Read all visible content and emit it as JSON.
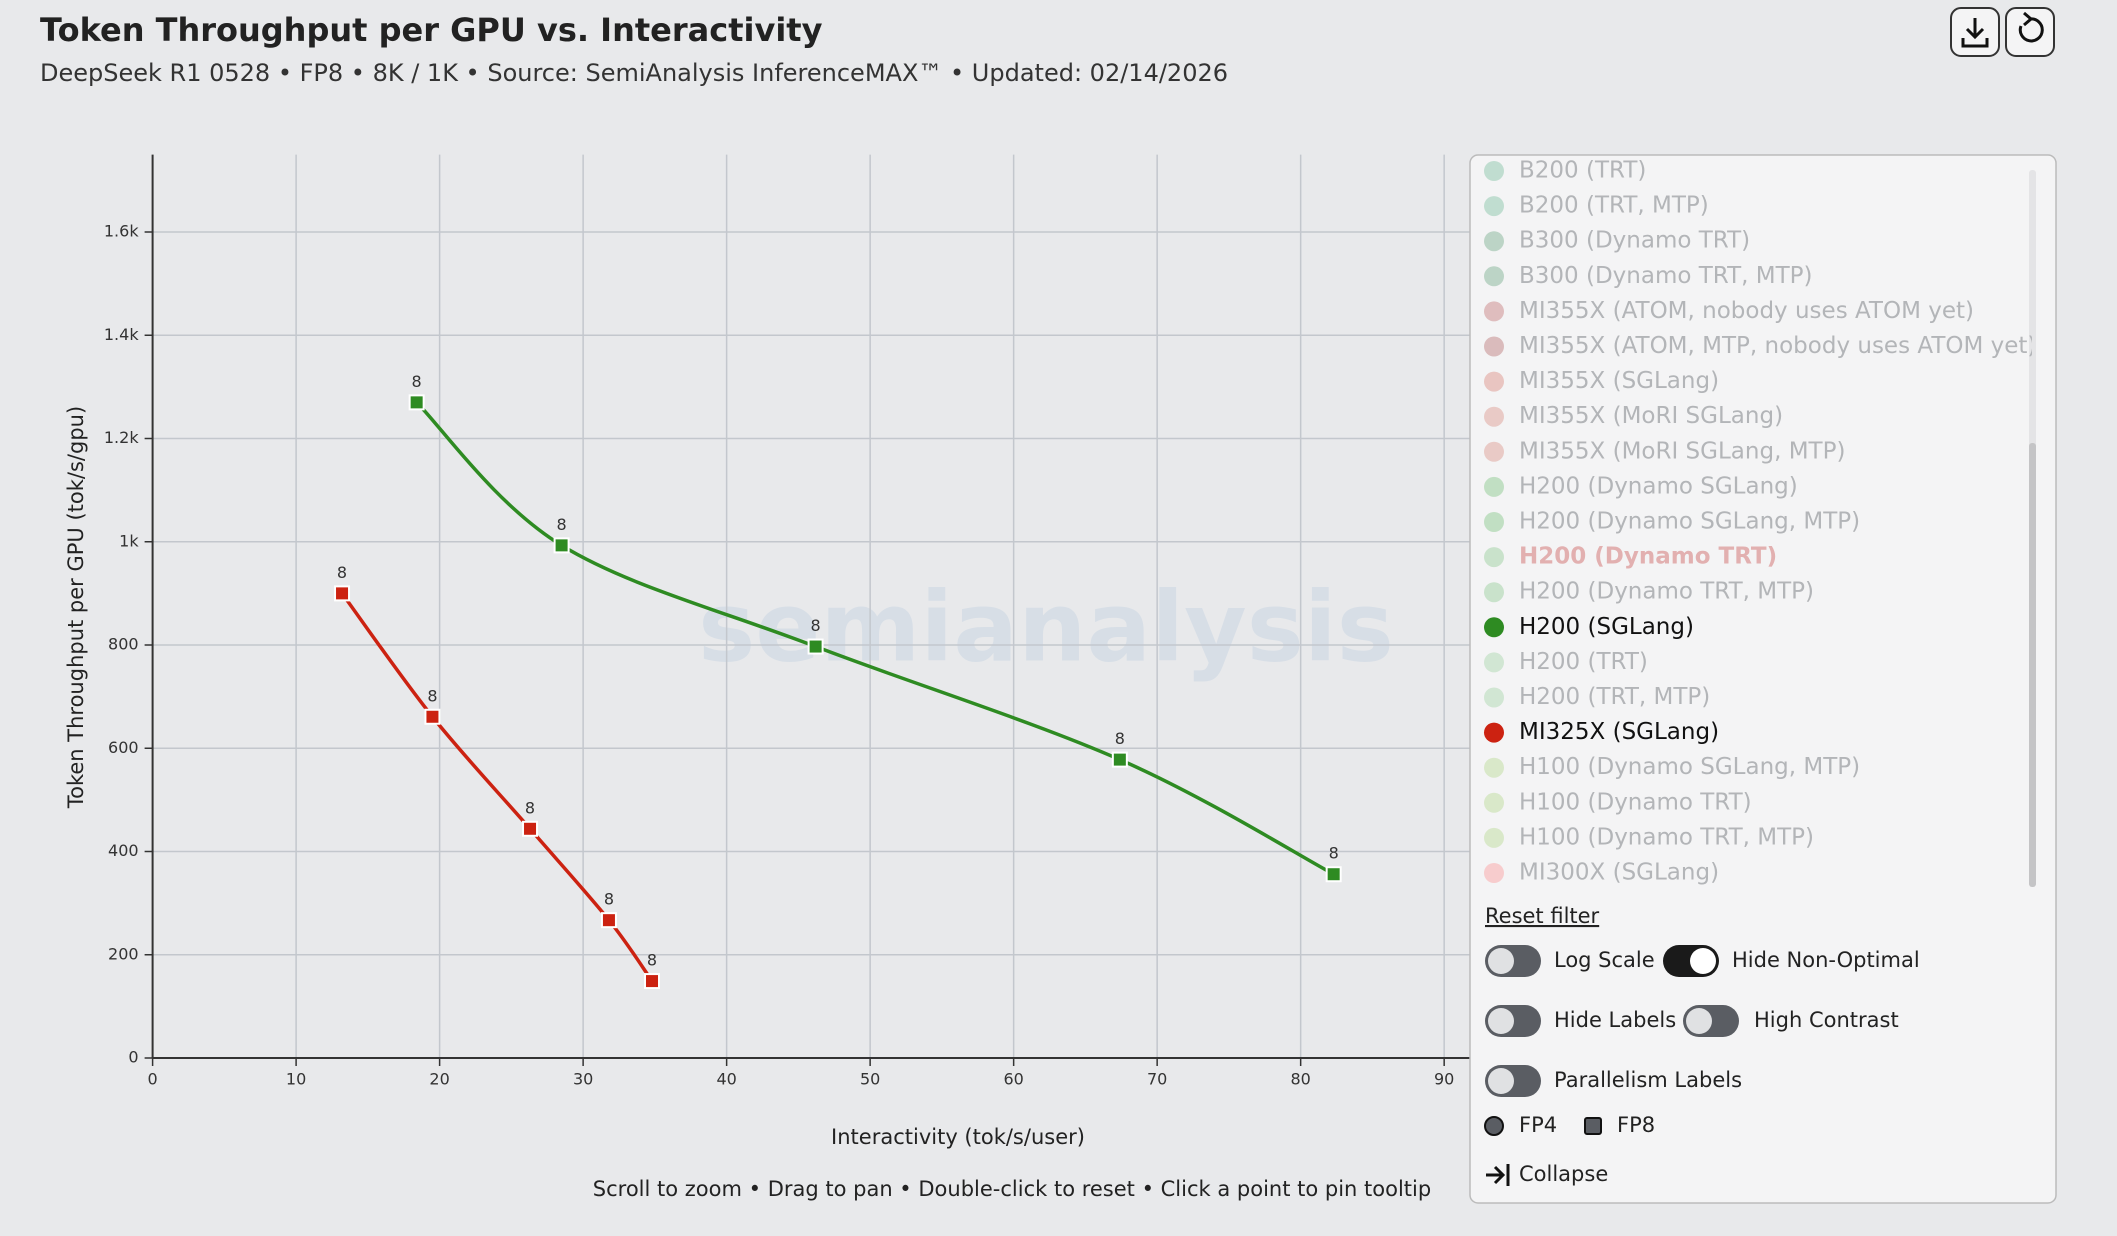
{
  "header": {
    "title": "Token Throughput per GPU vs. Interactivity",
    "subtitle": "DeepSeek R1 0528 • FP8 • 8K / 1K • Source: SemiAnalysis InferenceMAX™ • Updated: 02/14/2026"
  },
  "chart_data": {
    "type": "line",
    "x_label": "Interactivity (tok/s/user)",
    "y_label": "Token Throughput per GPU (tok/s/gpu)",
    "watermark": "semianalysis",
    "xlim": [
      0,
      91.8
    ],
    "ylim": [
      0,
      1750
    ],
    "xticks": [
      0,
      10,
      20,
      30,
      40,
      50,
      60,
      70,
      80,
      90
    ],
    "yticks": [
      0,
      200,
      400,
      600,
      800,
      {
        "value": 1000,
        "label": "1k"
      },
      {
        "value": 1200,
        "label": "1.2k"
      },
      {
        "value": 1400,
        "label": "1.4k"
      },
      {
        "value": 1600,
        "label": "1.6k"
      }
    ],
    "grid": true,
    "series": [
      {
        "name": "H200 (SGLang)",
        "color": "#2e8b22",
        "x": [
          18.4,
          28.5,
          46.2,
          67.4,
          82.3
        ],
        "values": [
          1270,
          993,
          797,
          578,
          356
        ],
        "point_labels": [
          "8",
          "8",
          "8",
          "8",
          "8"
        ]
      },
      {
        "name": "MI325X (SGLang)",
        "color": "#cc2211",
        "x": [
          13.2,
          19.5,
          26.3,
          31.8,
          34.8
        ],
        "values": [
          900,
          661,
          444,
          267,
          149
        ],
        "point_labels": [
          "8",
          "8",
          "8",
          "8",
          "8"
        ]
      }
    ]
  },
  "footer": "Scroll to zoom • Drag to pan • Double-click to reset • Click a point to pin tooltip",
  "legend_panel": {
    "highlight_color": "#e2b0b0",
    "items": [
      {
        "label": "B200 (TRT)",
        "color": "#4aa87a"
      },
      {
        "label": "B200 (TRT, MTP)",
        "color": "#4aa87a"
      },
      {
        "label": "B300 (Dynamo TRT)",
        "color": "#3a8a5a"
      },
      {
        "label": "B300 (Dynamo TRT, MTP)",
        "color": "#3a8a5a"
      },
      {
        "label": "MI355X (ATOM, nobody uses ATOM yet)",
        "color": "#b04040"
      },
      {
        "label": "MI355X (ATOM, MTP, nobody uses ATOM yet)",
        "color": "#a03838"
      },
      {
        "label": "MI355X (SGLang)",
        "color": "#d05a4a"
      },
      {
        "label": "MI355X (MoRI SGLang)",
        "color": "#d06a5a"
      },
      {
        "label": "MI355X (MoRI SGLang, MTP)",
        "color": "#d06a5a"
      },
      {
        "label": "H200 (Dynamo SGLang)",
        "color": "#4caf50"
      },
      {
        "label": "H200 (Dynamo SGLang, MTP)",
        "color": "#4caf50"
      },
      {
        "label": "H200 (Dynamo TRT)",
        "color": "#66bb6a",
        "highlighted": true
      },
      {
        "label": "H200 (Dynamo TRT, MTP)",
        "color": "#66bb6a"
      },
      {
        "series": 0
      },
      {
        "label": "H200 (TRT)",
        "color": "#81c784"
      },
      {
        "label": "H200 (TRT, MTP)",
        "color": "#81c784"
      },
      {
        "series": 1
      },
      {
        "label": "H100 (Dynamo SGLang, MTP)",
        "color": "#9ccc65"
      },
      {
        "label": "H100 (Dynamo TRT)",
        "color": "#9ccc65"
      },
      {
        "label": "H100 (Dynamo TRT, MTP)",
        "color": "#9ccc65"
      },
      {
        "label": "MI300X (SGLang)",
        "color": "#ff7070"
      }
    ],
    "reset": "Reset filter",
    "toggles": [
      {
        "label": "Log Scale",
        "on": false
      },
      {
        "label": "Hide Non-Optimal",
        "on": true
      },
      {
        "label": "Hide Labels",
        "on": false
      },
      {
        "label": "High Contrast",
        "on": false
      },
      {
        "label": "Parallelism Labels",
        "on": false
      }
    ],
    "precision": [
      {
        "label": "FP4",
        "shape": "circle"
      },
      {
        "label": "FP8",
        "shape": "square"
      }
    ],
    "collapse": "Collapse"
  }
}
